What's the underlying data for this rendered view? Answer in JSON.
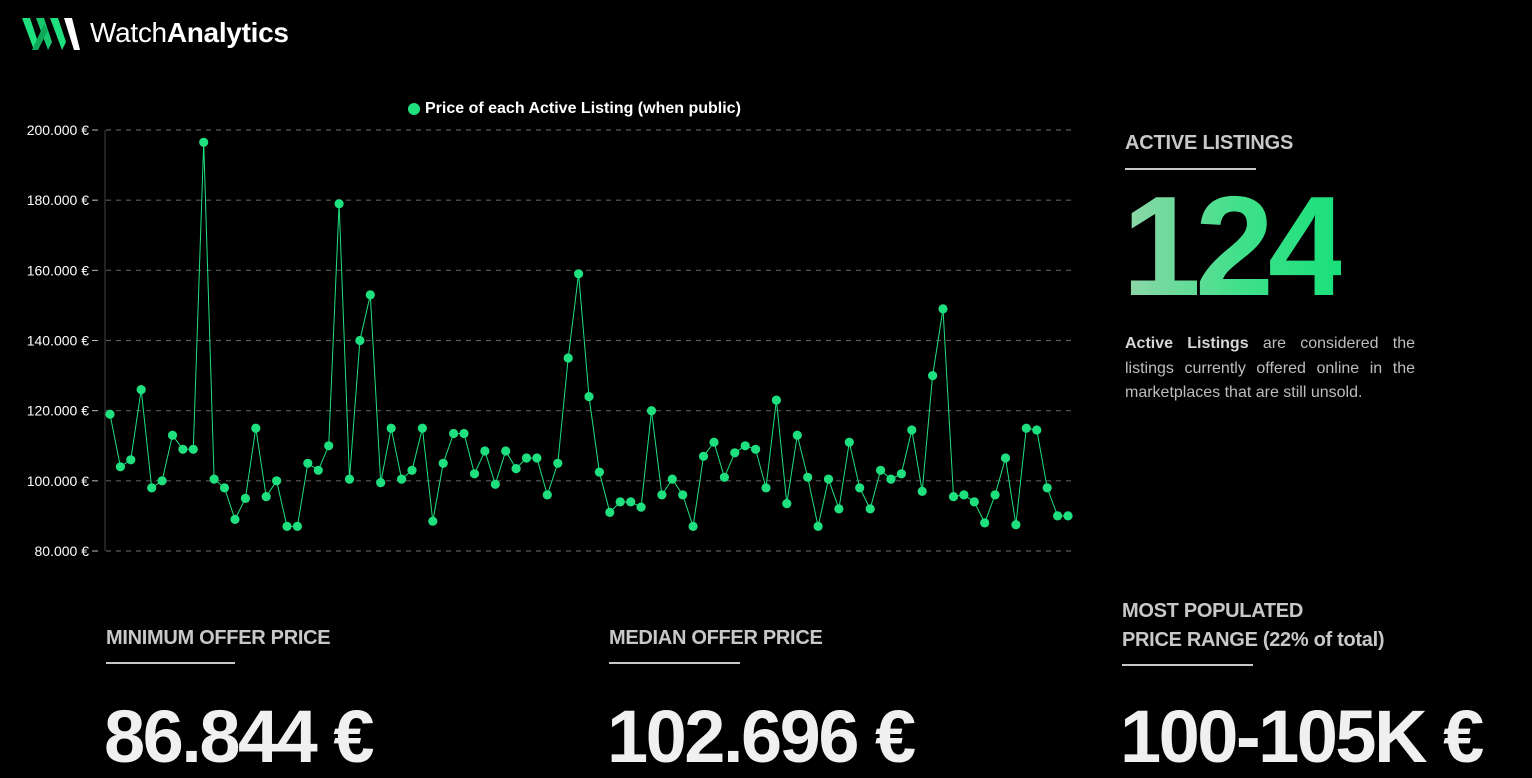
{
  "brand": {
    "name_part1": "Watch",
    "name_part2": "Analytics",
    "accent_color": "#1fe07e"
  },
  "chart_data": {
    "type": "line",
    "legend": "Price of each Active Listing (when public)",
    "y_ticks": [
      "200.000 €",
      "180.000 €",
      "160.000 €",
      "140.000 €",
      "120.000 €",
      "100.000 €",
      "80.000 €"
    ],
    "ylim": [
      80000,
      200000
    ],
    "grid": true,
    "line_color": "#1fe07e",
    "values": [
      119000,
      104000,
      106000,
      126000,
      98000,
      100000,
      113000,
      109000,
      109000,
      196500,
      100500,
      98000,
      89000,
      95000,
      115000,
      95500,
      100000,
      87000,
      87000,
      105000,
      103000,
      110000,
      179000,
      100500,
      140000,
      153000,
      99500,
      115000,
      100500,
      103000,
      115000,
      88500,
      105000,
      113500,
      113500,
      102000,
      108500,
      99000,
      108500,
      103500,
      106500,
      106500,
      96000,
      105000,
      135000,
      159000,
      124000,
      102500,
      91000,
      94000,
      94000,
      92500,
      120000,
      96000,
      100500,
      96000,
      87000,
      107000,
      111000,
      101000,
      108000,
      110000,
      109000,
      98000,
      123000,
      93500,
      113000,
      101000,
      87000,
      100500,
      92000,
      111000,
      98000,
      92000,
      103000,
      100500,
      102000,
      114500,
      97000,
      130000,
      149000,
      95500,
      96000,
      94000,
      88000,
      96000,
      106500,
      87500,
      115000,
      114500,
      98000,
      90000,
      90000
    ]
  },
  "active_listings": {
    "title": "ACTIVE LISTINGS",
    "count": "124",
    "desc_bold": "Active Listings",
    "desc_rest": " are considered the listings currently offered online in the marketplaces that are still unsold."
  },
  "stats": {
    "min": {
      "title": "MINIMUM OFFER PRICE",
      "value": "86.844 €"
    },
    "median": {
      "title": "MEDIAN OFFER PRICE",
      "value": "102.696 €"
    },
    "range": {
      "title_line1": "MOST POPULATED",
      "title_line2": "PRICE RANGE ",
      "pct": "(22% of total)",
      "value": "100-105K €"
    }
  }
}
